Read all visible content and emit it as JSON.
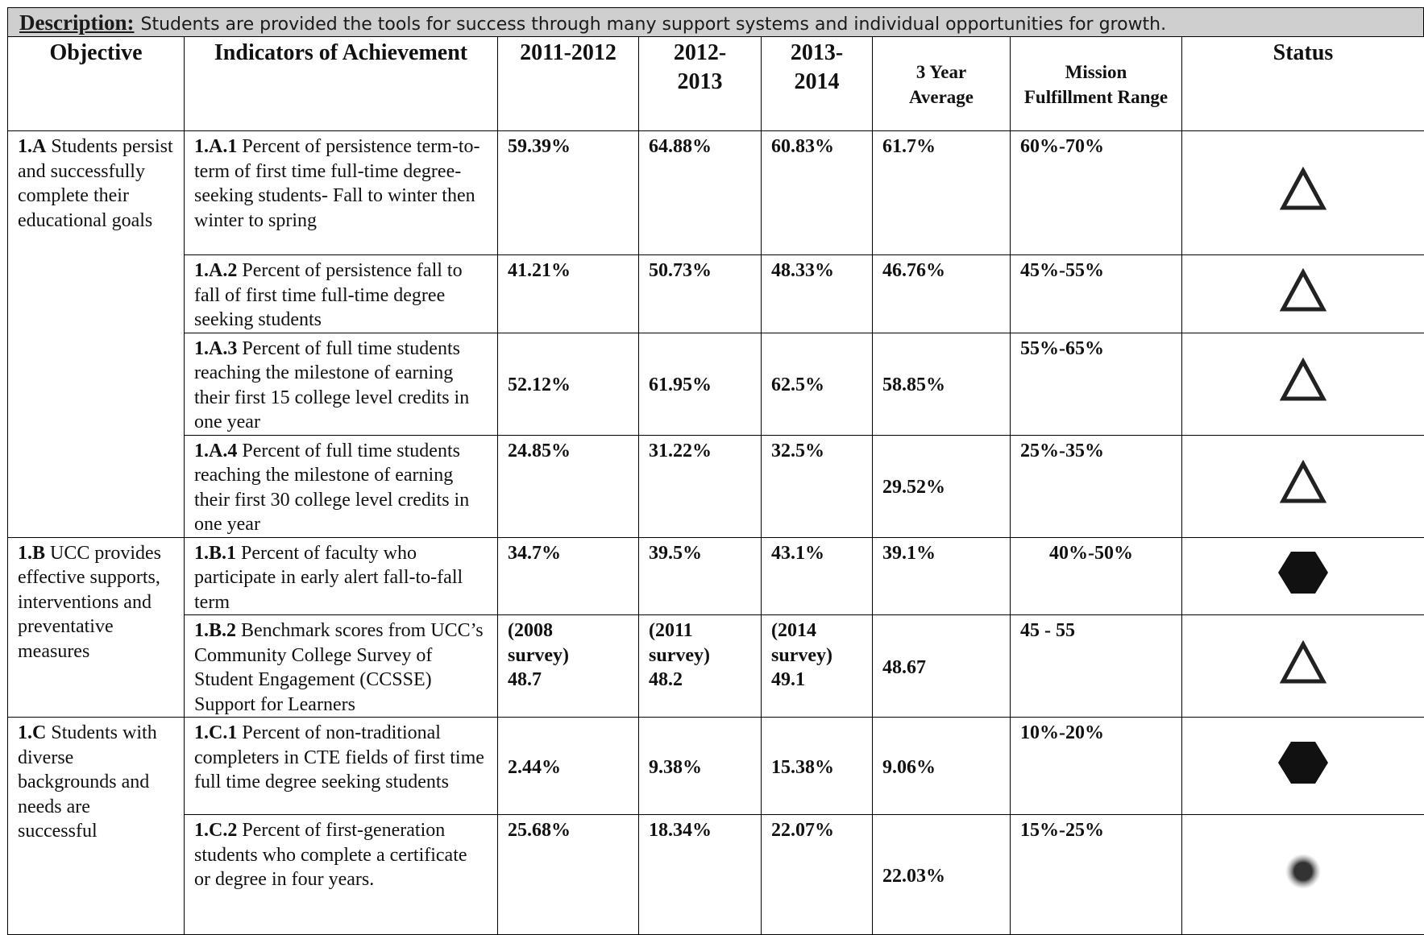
{
  "description": {
    "label": "Description:",
    "text": "Students are provided the tools for success through many support systems and individual opportunities for growth."
  },
  "headers": [
    "Objective",
    "Indicators of Achievement",
    "2011-2012",
    "2012-\n2013",
    "2013-\n2014",
    "3 Year Average",
    "Mission Fulfillment Range",
    "Status"
  ],
  "objectives": [
    {
      "id": "1.A",
      "text": "Students persist and successfully complete their educational goals",
      "indicators": [
        {
          "id": "1.A.1",
          "text": "Percent of persistence term-to-term of first time full-time degree-seeking students- Fall to winter then winter to spring",
          "years": [
            "59.39%",
            "64.88%",
            "60.83%"
          ],
          "average": "61.7%",
          "range": "60%-70%"
        },
        {
          "id": "1.A.2",
          "text": "Percent of persistence fall to fall of first time full-time degree seeking students",
          "years": [
            "41.21%",
            "50.73%",
            "48.33%"
          ],
          "average": "46.76%",
          "range": "45%-55%"
        },
        {
          "id": "1.A.3",
          "text": "Percent of full time students reaching the milestone of earning their first 15 college level credits in one year",
          "years": [
            "52.12%",
            "61.95%",
            "62.5%"
          ],
          "average": "58.85%",
          "range": "55%-65%"
        },
        {
          "id": "1.A.4",
          "text": "Percent of full time students reaching the milestone of earning their first 30 college level credits in one year",
          "years": [
            "24.85%",
            "31.22%",
            "32.5%"
          ],
          "average": "29.52%",
          "range": "25%-35%"
        }
      ]
    },
    {
      "id": "1.B",
      "text": "UCC provides effective supports, interventions and preventative measures",
      "indicators": [
        {
          "id": "1.B.1",
          "text": "Percent of faculty who participate in early alert fall-to-fall term",
          "years": [
            "34.7%",
            "39.5%",
            "43.1%"
          ],
          "average": "39.1%",
          "range": "40%-50%"
        },
        {
          "id": "1.B.2",
          "text": "Benchmark scores from UCC’s Community College Survey of Student Engagement (CCSSE) Support for Learners",
          "years": [
            "(2008\nsurvey)\n48.7",
            "(2011\nsurvey)\n48.2",
            "(2014\nsurvey)\n49.1"
          ],
          "average": "48.67",
          "range": "45 - 55"
        }
      ]
    },
    {
      "id": "1.C",
      "text": "Students with diverse backgrounds and needs are successful",
      "indicators": [
        {
          "id": "1.C.1",
          "text": "Percent of non-traditional completers in CTE fields of first time full time degree seeking students",
          "years": [
            "2.44%",
            "9.38%",
            "15.38%"
          ],
          "average": "9.06%",
          "range": "10%-20%"
        },
        {
          "id": "1.C.2",
          "text": "Percent of first-generation students who complete a certificate or degree in four years.",
          "years": [
            "25.68%",
            "18.34%",
            "22.07%"
          ],
          "average": "22.03%",
          "range": "15%-25%"
        }
      ]
    }
  ]
}
